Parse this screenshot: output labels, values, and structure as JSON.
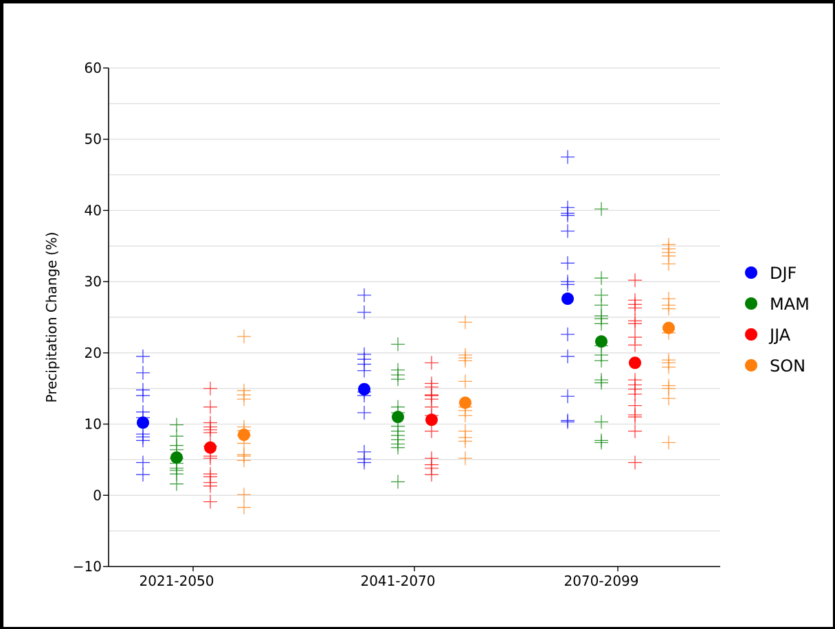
{
  "chart_data": {
    "type": "scatter",
    "title": "",
    "xlabel": "",
    "ylabel": "Precipitation Change (%)",
    "ylim": [
      -10,
      60
    ],
    "yticks": [
      -10,
      0,
      10,
      20,
      30,
      40,
      50,
      60
    ],
    "ytick_labels": [
      "−10",
      "0",
      "10",
      "20",
      "30",
      "40",
      "50",
      "60"
    ],
    "categories": [
      "2021-2050",
      "2041-2070",
      "2070-2099"
    ],
    "grid": "horizontal every 5",
    "legend_position": "right",
    "series": [
      {
        "name": "DJF",
        "color": "#0000ff",
        "means": [
          10.2,
          14.9,
          27.6
        ],
        "members": [
          [
            19.5,
            17.2,
            14.8,
            14.0,
            11.7,
            10.9,
            8.6,
            8.2,
            7.7,
            4.6,
            2.9
          ],
          [
            28.1,
            25.7,
            19.8,
            19.1,
            18.4,
            17.5,
            14.5,
            14.0,
            11.6,
            6.1,
            5.1,
            4.6
          ],
          [
            47.5,
            40.4,
            39.6,
            39.3,
            37.1,
            32.6,
            30.0,
            29.6,
            22.6,
            19.5,
            13.9,
            10.5,
            10.3
          ]
        ]
      },
      {
        "name": "MAM",
        "color": "#008000",
        "means": [
          5.3,
          11.0,
          21.6
        ],
        "members": [
          [
            9.9,
            8.3,
            7.0,
            6.4,
            5.2,
            4.5,
            3.8,
            3.5,
            3.0,
            1.6
          ],
          [
            21.2,
            17.6,
            16.9,
            16.3,
            12.4,
            11.6,
            9.7,
            9.0,
            8.4,
            7.8,
            7.2,
            6.7,
            1.9
          ],
          [
            40.2,
            30.5,
            28.1,
            26.7,
            25.2,
            24.8,
            24.1,
            21.0,
            19.7,
            18.9,
            16.2,
            15.8,
            10.3,
            7.7,
            7.4
          ]
        ]
      },
      {
        "name": "JJA",
        "color": "#ff0000",
        "means": [
          6.7,
          10.6,
          18.6
        ],
        "members": [
          [
            15.0,
            12.4,
            10.2,
            9.6,
            9.2,
            8.8,
            6.9,
            5.5,
            5.2,
            3.0,
            2.6,
            1.8,
            1.3,
            -0.9
          ],
          [
            18.6,
            15.7,
            15.2,
            14.1,
            14.0,
            13.5,
            12.4,
            11.2,
            9.0,
            5.2,
            4.3,
            3.8,
            2.9
          ],
          [
            30.2,
            27.4,
            26.8,
            26.3,
            24.5,
            24.1,
            22.2,
            21.1,
            16.2,
            15.5,
            14.9,
            14.2,
            12.6,
            11.3,
            11.0,
            9.0,
            4.6
          ]
        ]
      },
      {
        "name": "SON",
        "color": "#ff7f0e",
        "means": [
          8.5,
          13.0,
          23.5
        ],
        "members": [
          [
            22.3,
            14.7,
            14.1,
            13.5,
            9.6,
            9.1,
            8.4,
            7.3,
            5.7,
            5.5,
            4.9,
            0.1,
            -1.7
          ],
          [
            24.3,
            19.7,
            19.3,
            18.9,
            16.0,
            12.4,
            11.9,
            11.2,
            9.0,
            8.1,
            7.6,
            5.2
          ],
          [
            35.2,
            34.6,
            34.1,
            33.6,
            32.5,
            27.6,
            26.7,
            26.2,
            22.8,
            19.0,
            18.6,
            18.0,
            15.4,
            15.0,
            13.6,
            7.4
          ]
        ]
      }
    ]
  }
}
